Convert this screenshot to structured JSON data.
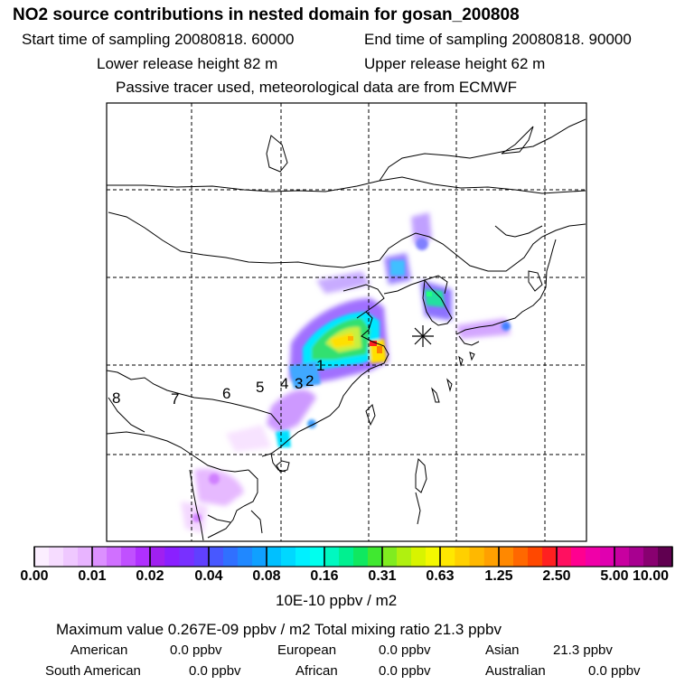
{
  "header": {
    "title": "NO2 source contributions in nested domain for gosan_200808",
    "start_time": "Start time of sampling 20080818. 60000",
    "end_time": "End time of sampling 20080818. 90000",
    "lower_height": "Lower release height   82 m",
    "upper_height": "Upper release height   62 m",
    "passive_note": "Passive tracer used, meteorological data are from ECMWF"
  },
  "map": {
    "receptor_marker": "asterisk-receptor",
    "source_labels": [
      "1",
      "2",
      "3",
      "4",
      "5",
      "6",
      "7",
      "8"
    ],
    "colors": {
      "plume_low": "#c070ff",
      "plume_mid": "#00ffff",
      "plume_high": "#ffff00",
      "plume_peak": "#ff2020",
      "coast": "#000000",
      "grid": "#000000"
    }
  },
  "colorbar": {
    "tick_labels": [
      "0.00",
      "0.01",
      "0.02",
      "0.04",
      "0.08",
      "0.16",
      "0.31",
      "0.63",
      "1.25",
      "2.50",
      "5.00",
      "10.00"
    ],
    "unit": "10E-10 ppbv / m2"
  },
  "summary": {
    "max_line": "Maximum value  0.267E-09 ppbv / m2      Total mixing ratio       21.3 ppbv",
    "rows": [
      [
        {
          "label": "American",
          "value": "0.0 ppbv"
        },
        {
          "label": "European",
          "value": "0.0 ppbv"
        },
        {
          "label": "Asian",
          "value": "21.3 ppbv"
        }
      ],
      [
        {
          "label": "South American",
          "value": "0.0 ppbv"
        },
        {
          "label": "African",
          "value": "0.0 ppbv"
        },
        {
          "label": "Australian",
          "value": "0.0 ppbv"
        }
      ]
    ]
  }
}
